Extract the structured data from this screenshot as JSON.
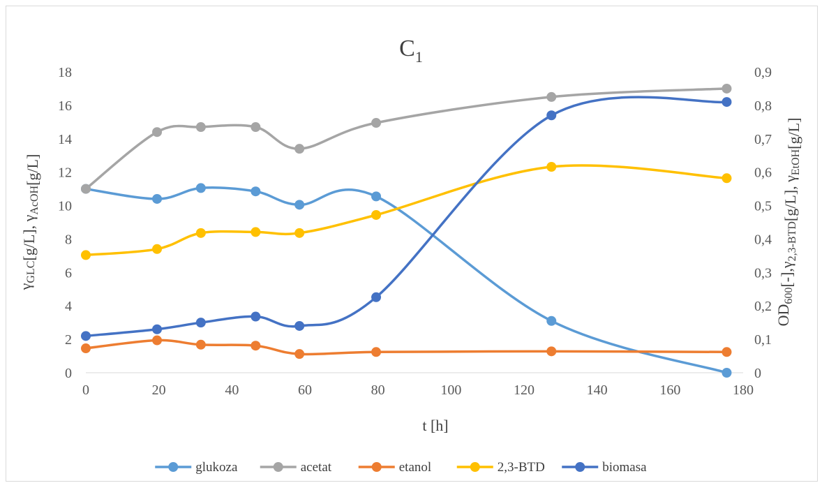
{
  "chart_data": {
    "type": "line",
    "title": {
      "main": "C",
      "sub": "1"
    },
    "xlabel": "t [h]",
    "ylabel_left": [
      {
        "t": "γ",
        "sub": "GLC"
      },
      {
        "t": "[g/L], γ",
        "sub": "AcOH"
      },
      {
        "t": "[g/L]",
        "sub": ""
      }
    ],
    "ylabel_right": [
      {
        "t": "OD",
        "sub": "600"
      },
      {
        "t": "[-],γ",
        "sub": "2,3-BTD"
      },
      {
        "t": "[g/L], γ",
        "sub": "EtOH"
      },
      {
        "t": "[g/L]",
        "sub": ""
      }
    ],
    "xlim": [
      0,
      180
    ],
    "ylim_left": [
      0,
      18
    ],
    "ylim_right": [
      0,
      0.9
    ],
    "x_ticks": [
      "0",
      "20",
      "40",
      "60",
      "80",
      "100",
      "120",
      "140",
      "160",
      "180"
    ],
    "y_left_ticks": [
      "0",
      "2",
      "4",
      "6",
      "8",
      "10",
      "12",
      "14",
      "16",
      "18"
    ],
    "y_right_ticks": [
      "0",
      "0,1",
      "0,2",
      "0,3",
      "0,4",
      "0,5",
      "0,6",
      "0,7",
      "0,8",
      "0,9"
    ],
    "x": [
      0,
      19.5,
      31.5,
      46.5,
      58.5,
      79.5,
      127.5,
      175.5
    ],
    "series": [
      {
        "name": "glukoza",
        "axis": "left",
        "color": "#5b9bd5",
        "values": [
          11.0,
          10.4,
          11.05,
          10.85,
          10.05,
          10.55,
          3.1,
          0.0
        ]
      },
      {
        "name": "acetat",
        "axis": "left",
        "color": "#a5a5a5",
        "values": [
          11.0,
          14.4,
          14.7,
          14.7,
          13.4,
          14.95,
          16.5,
          17.0
        ]
      },
      {
        "name": "etanol",
        "axis": "right",
        "color": "#ed7d31",
        "values": [
          0.073,
          0.097,
          0.084,
          0.081,
          0.056,
          0.062,
          0.064,
          0.062
        ]
      },
      {
        "name": "2,3-BTD",
        "axis": "right",
        "color": "#ffc000",
        "values": [
          0.352,
          0.37,
          0.418,
          0.421,
          0.418,
          0.472,
          0.616,
          0.582
        ]
      },
      {
        "name": "biomasa",
        "axis": "right",
        "color": "#4472c4",
        "values": [
          0.11,
          0.13,
          0.15,
          0.168,
          0.14,
          0.226,
          0.77,
          0.81
        ]
      }
    ],
    "grid": false,
    "legend_position": "bottom"
  }
}
